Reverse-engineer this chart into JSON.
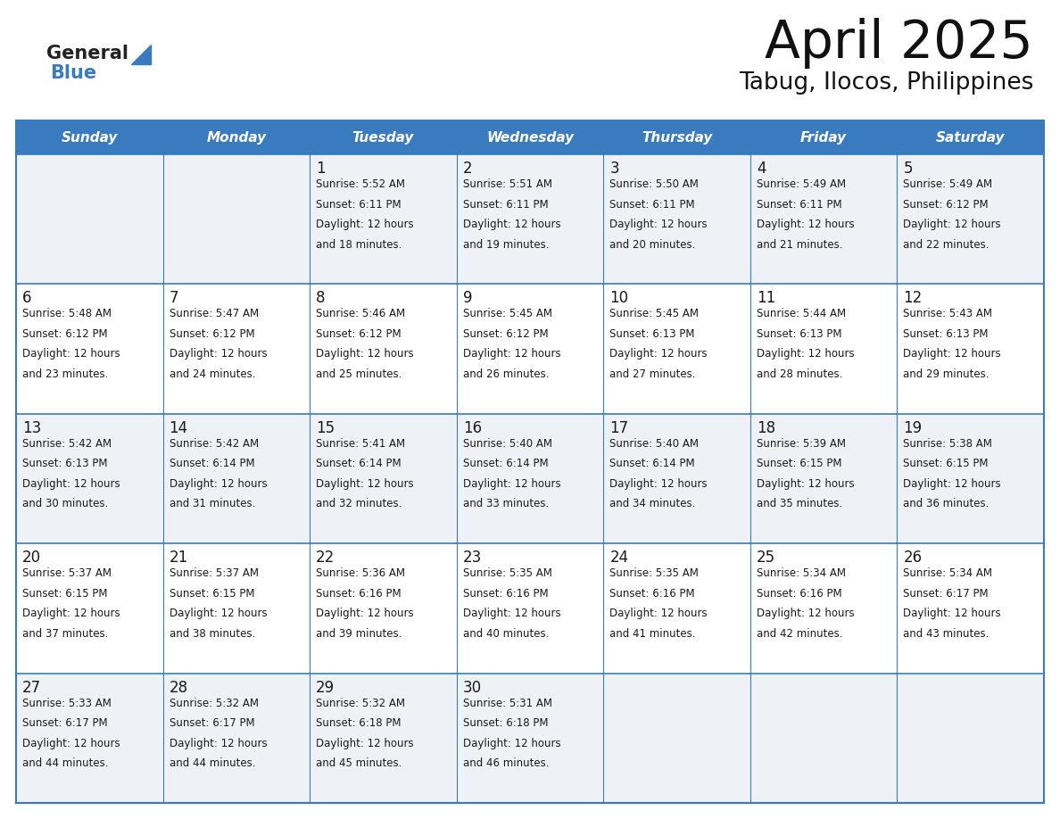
{
  "title": "April 2025",
  "subtitle": "Tabug, Ilocos, Philippines",
  "header_color": "#3a7bbf",
  "header_text_color": "#ffffff",
  "cell_bg_even": "#eef2f7",
  "cell_bg_odd": "#ffffff",
  "border_color": "#3a7bbf",
  "text_color": "#1a1a1a",
  "day_names": [
    "Sunday",
    "Monday",
    "Tuesday",
    "Wednesday",
    "Thursday",
    "Friday",
    "Saturday"
  ],
  "days": [
    {
      "date": 1,
      "col": 2,
      "row": 0,
      "sunrise": "5:52 AM",
      "sunset": "6:11 PM",
      "daylight_h": "12 hours",
      "daylight_m": "18 minutes"
    },
    {
      "date": 2,
      "col": 3,
      "row": 0,
      "sunrise": "5:51 AM",
      "sunset": "6:11 PM",
      "daylight_h": "12 hours",
      "daylight_m": "19 minutes"
    },
    {
      "date": 3,
      "col": 4,
      "row": 0,
      "sunrise": "5:50 AM",
      "sunset": "6:11 PM",
      "daylight_h": "12 hours",
      "daylight_m": "20 minutes"
    },
    {
      "date": 4,
      "col": 5,
      "row": 0,
      "sunrise": "5:49 AM",
      "sunset": "6:11 PM",
      "daylight_h": "12 hours",
      "daylight_m": "21 minutes"
    },
    {
      "date": 5,
      "col": 6,
      "row": 0,
      "sunrise": "5:49 AM",
      "sunset": "6:12 PM",
      "daylight_h": "12 hours",
      "daylight_m": "22 minutes"
    },
    {
      "date": 6,
      "col": 0,
      "row": 1,
      "sunrise": "5:48 AM",
      "sunset": "6:12 PM",
      "daylight_h": "12 hours",
      "daylight_m": "23 minutes"
    },
    {
      "date": 7,
      "col": 1,
      "row": 1,
      "sunrise": "5:47 AM",
      "sunset": "6:12 PM",
      "daylight_h": "12 hours",
      "daylight_m": "24 minutes"
    },
    {
      "date": 8,
      "col": 2,
      "row": 1,
      "sunrise": "5:46 AM",
      "sunset": "6:12 PM",
      "daylight_h": "12 hours",
      "daylight_m": "25 minutes"
    },
    {
      "date": 9,
      "col": 3,
      "row": 1,
      "sunrise": "5:45 AM",
      "sunset": "6:12 PM",
      "daylight_h": "12 hours",
      "daylight_m": "26 minutes"
    },
    {
      "date": 10,
      "col": 4,
      "row": 1,
      "sunrise": "5:45 AM",
      "sunset": "6:13 PM",
      "daylight_h": "12 hours",
      "daylight_m": "27 minutes"
    },
    {
      "date": 11,
      "col": 5,
      "row": 1,
      "sunrise": "5:44 AM",
      "sunset": "6:13 PM",
      "daylight_h": "12 hours",
      "daylight_m": "28 minutes"
    },
    {
      "date": 12,
      "col": 6,
      "row": 1,
      "sunrise": "5:43 AM",
      "sunset": "6:13 PM",
      "daylight_h": "12 hours",
      "daylight_m": "29 minutes"
    },
    {
      "date": 13,
      "col": 0,
      "row": 2,
      "sunrise": "5:42 AM",
      "sunset": "6:13 PM",
      "daylight_h": "12 hours",
      "daylight_m": "30 minutes"
    },
    {
      "date": 14,
      "col": 1,
      "row": 2,
      "sunrise": "5:42 AM",
      "sunset": "6:14 PM",
      "daylight_h": "12 hours",
      "daylight_m": "31 minutes"
    },
    {
      "date": 15,
      "col": 2,
      "row": 2,
      "sunrise": "5:41 AM",
      "sunset": "6:14 PM",
      "daylight_h": "12 hours",
      "daylight_m": "32 minutes"
    },
    {
      "date": 16,
      "col": 3,
      "row": 2,
      "sunrise": "5:40 AM",
      "sunset": "6:14 PM",
      "daylight_h": "12 hours",
      "daylight_m": "33 minutes"
    },
    {
      "date": 17,
      "col": 4,
      "row": 2,
      "sunrise": "5:40 AM",
      "sunset": "6:14 PM",
      "daylight_h": "12 hours",
      "daylight_m": "34 minutes"
    },
    {
      "date": 18,
      "col": 5,
      "row": 2,
      "sunrise": "5:39 AM",
      "sunset": "6:15 PM",
      "daylight_h": "12 hours",
      "daylight_m": "35 minutes"
    },
    {
      "date": 19,
      "col": 6,
      "row": 2,
      "sunrise": "5:38 AM",
      "sunset": "6:15 PM",
      "daylight_h": "12 hours",
      "daylight_m": "36 minutes"
    },
    {
      "date": 20,
      "col": 0,
      "row": 3,
      "sunrise": "5:37 AM",
      "sunset": "6:15 PM",
      "daylight_h": "12 hours",
      "daylight_m": "37 minutes"
    },
    {
      "date": 21,
      "col": 1,
      "row": 3,
      "sunrise": "5:37 AM",
      "sunset": "6:15 PM",
      "daylight_h": "12 hours",
      "daylight_m": "38 minutes"
    },
    {
      "date": 22,
      "col": 2,
      "row": 3,
      "sunrise": "5:36 AM",
      "sunset": "6:16 PM",
      "daylight_h": "12 hours",
      "daylight_m": "39 minutes"
    },
    {
      "date": 23,
      "col": 3,
      "row": 3,
      "sunrise": "5:35 AM",
      "sunset": "6:16 PM",
      "daylight_h": "12 hours",
      "daylight_m": "40 minutes"
    },
    {
      "date": 24,
      "col": 4,
      "row": 3,
      "sunrise": "5:35 AM",
      "sunset": "6:16 PM",
      "daylight_h": "12 hours",
      "daylight_m": "41 minutes"
    },
    {
      "date": 25,
      "col": 5,
      "row": 3,
      "sunrise": "5:34 AM",
      "sunset": "6:16 PM",
      "daylight_h": "12 hours",
      "daylight_m": "42 minutes"
    },
    {
      "date": 26,
      "col": 6,
      "row": 3,
      "sunrise": "5:34 AM",
      "sunset": "6:17 PM",
      "daylight_h": "12 hours",
      "daylight_m": "43 minutes"
    },
    {
      "date": 27,
      "col": 0,
      "row": 4,
      "sunrise": "5:33 AM",
      "sunset": "6:17 PM",
      "daylight_h": "12 hours",
      "daylight_m": "44 minutes"
    },
    {
      "date": 28,
      "col": 1,
      "row": 4,
      "sunrise": "5:32 AM",
      "sunset": "6:17 PM",
      "daylight_h": "12 hours",
      "daylight_m": "44 minutes"
    },
    {
      "date": 29,
      "col": 2,
      "row": 4,
      "sunrise": "5:32 AM",
      "sunset": "6:18 PM",
      "daylight_h": "12 hours",
      "daylight_m": "45 minutes"
    },
    {
      "date": 30,
      "col": 3,
      "row": 4,
      "sunrise": "5:31 AM",
      "sunset": "6:18 PM",
      "daylight_h": "12 hours",
      "daylight_m": "46 minutes"
    }
  ],
  "num_rows": 5,
  "num_cols": 7,
  "fig_width": 11.88,
  "fig_height": 9.18,
  "dpi": 100
}
